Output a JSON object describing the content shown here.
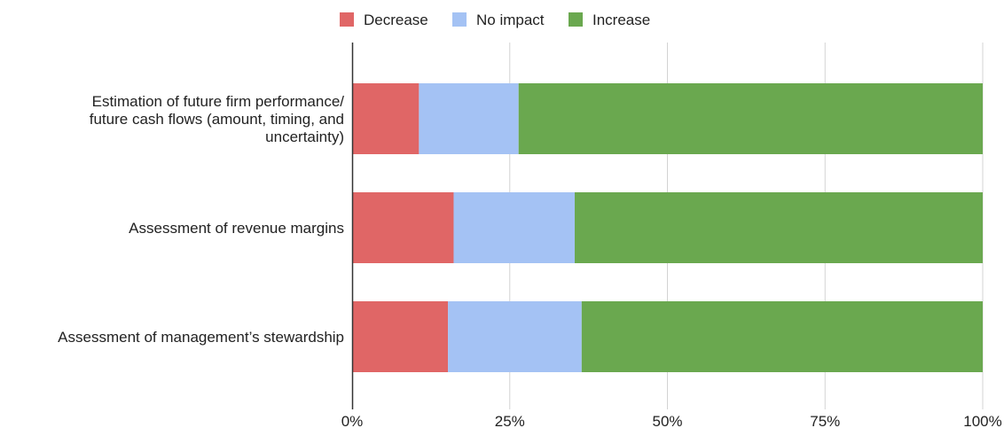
{
  "chart_data": {
    "type": "bar",
    "orientation": "horizontal",
    "stacked": true,
    "normalized": true,
    "title": "",
    "xlabel": "",
    "ylabel": "",
    "categories": [
      [
        "Estimation of future firm performance/",
        "future cash flows (amount, timing, and",
        "uncertainty)"
      ],
      [
        "Assessment of revenue margins"
      ],
      [
        "Assessment of management’s stewardship"
      ]
    ],
    "series": [
      {
        "name": "Decrease",
        "color": "#e06666",
        "values": [
          10.6,
          16.1,
          15.2
        ]
      },
      {
        "name": "No impact",
        "color": "#a4c2f4",
        "values": [
          15.8,
          19.2,
          21.2
        ]
      },
      {
        "name": "Increase",
        "color": "#6aa84f",
        "values": [
          73.6,
          64.7,
          63.6
        ]
      }
    ],
    "xlim": [
      0,
      100
    ],
    "x_ticks": [
      "0%",
      "25%",
      "50%",
      "75%",
      "100%"
    ],
    "grid": true,
    "legend_position": "top"
  }
}
